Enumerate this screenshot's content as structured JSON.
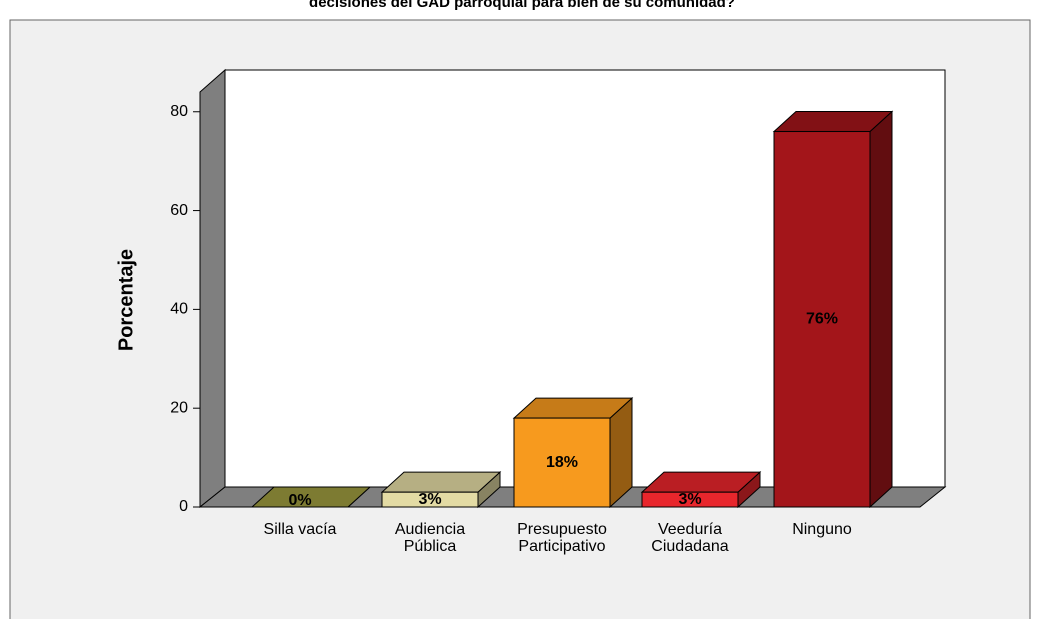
{
  "chart_data": {
    "type": "bar3d",
    "title": "decisiones del GAD parroquial para bien de su comunidad?",
    "y_label": "Porcentaje",
    "categories": [
      "Silla vacía",
      "Audiencia\nPública",
      "Presupuesto\nParticipativo",
      "Veeduría\nCiudadana",
      "Ninguno"
    ],
    "values": [
      0,
      3,
      18,
      3,
      76
    ],
    "value_labels": [
      "0%",
      "3%",
      "18%",
      "3%",
      "76%"
    ],
    "colors": [
      "#9c9a3e",
      "#e3dba4",
      "#f79a1e",
      "#e8262c",
      "#a3151a"
    ],
    "ylim": [
      0,
      84
    ],
    "yticks": [
      0,
      20,
      40,
      60,
      80
    ]
  }
}
